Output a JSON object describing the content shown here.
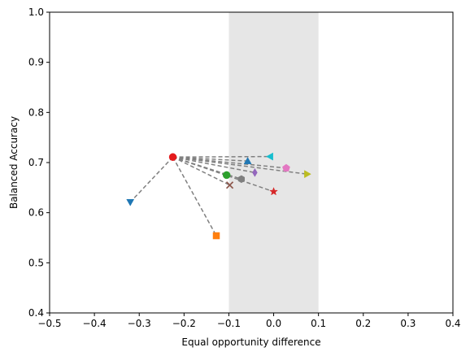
{
  "chart_data": {
    "type": "scatter",
    "title": "",
    "xlabel": "Equal opportunity difference",
    "ylabel": "Balanced Accuracy",
    "xlim": [
      -0.5,
      0.4
    ],
    "ylim": [
      0.4,
      1.0
    ],
    "xticks": [
      -0.5,
      -0.4,
      -0.3,
      -0.2,
      -0.1,
      0.0,
      0.1,
      0.2,
      0.3,
      0.4
    ],
    "yticks": [
      0.4,
      0.5,
      0.6,
      0.7,
      0.8,
      0.9,
      1.0
    ],
    "xtick_labels": [
      "−0.5",
      "−0.4",
      "−0.3",
      "−0.2",
      "−0.1",
      "0.0",
      "0.1",
      "0.2",
      "0.3",
      "0.4"
    ],
    "ytick_labels": [
      "0.4",
      "0.5",
      "0.6",
      "0.7",
      "0.8",
      "0.9",
      "1.0"
    ],
    "grid": false,
    "fair_band": {
      "x": [
        -0.1,
        0.1
      ],
      "color": "#e6e6e6"
    },
    "origin": {
      "x": -0.225,
      "y": 0.711,
      "color": "#e41a1c",
      "marker": "circle"
    },
    "connector_color": "#808080",
    "points": [
      {
        "x": -0.32,
        "y": 0.621,
        "color": "#1f77b4",
        "marker": "triangle-down"
      },
      {
        "x": -0.128,
        "y": 0.554,
        "color": "#ff7f0e",
        "marker": "square"
      },
      {
        "x": -0.105,
        "y": 0.675,
        "color": "#2ca02c",
        "marker": "circle"
      },
      {
        "x": 0.0,
        "y": 0.642,
        "color": "#d62728",
        "marker": "star"
      },
      {
        "x": -0.042,
        "y": 0.68,
        "color": "#9467bd",
        "marker": "diamond"
      },
      {
        "x": -0.098,
        "y": 0.655,
        "color": "#8c564b",
        "marker": "x"
      },
      {
        "x": 0.028,
        "y": 0.689,
        "color": "#e377c2",
        "marker": "pentagon"
      },
      {
        "x": -0.072,
        "y": 0.667,
        "color": "#7f7f7f",
        "marker": "hexagon"
      },
      {
        "x": 0.075,
        "y": 0.677,
        "color": "#bcbd22",
        "marker": "triangle-right"
      },
      {
        "x": -0.008,
        "y": 0.712,
        "color": "#17becf",
        "marker": "triangle-left"
      },
      {
        "x": -0.058,
        "y": 0.703,
        "color": "#1f77b4",
        "marker": "triangle-up"
      }
    ]
  }
}
